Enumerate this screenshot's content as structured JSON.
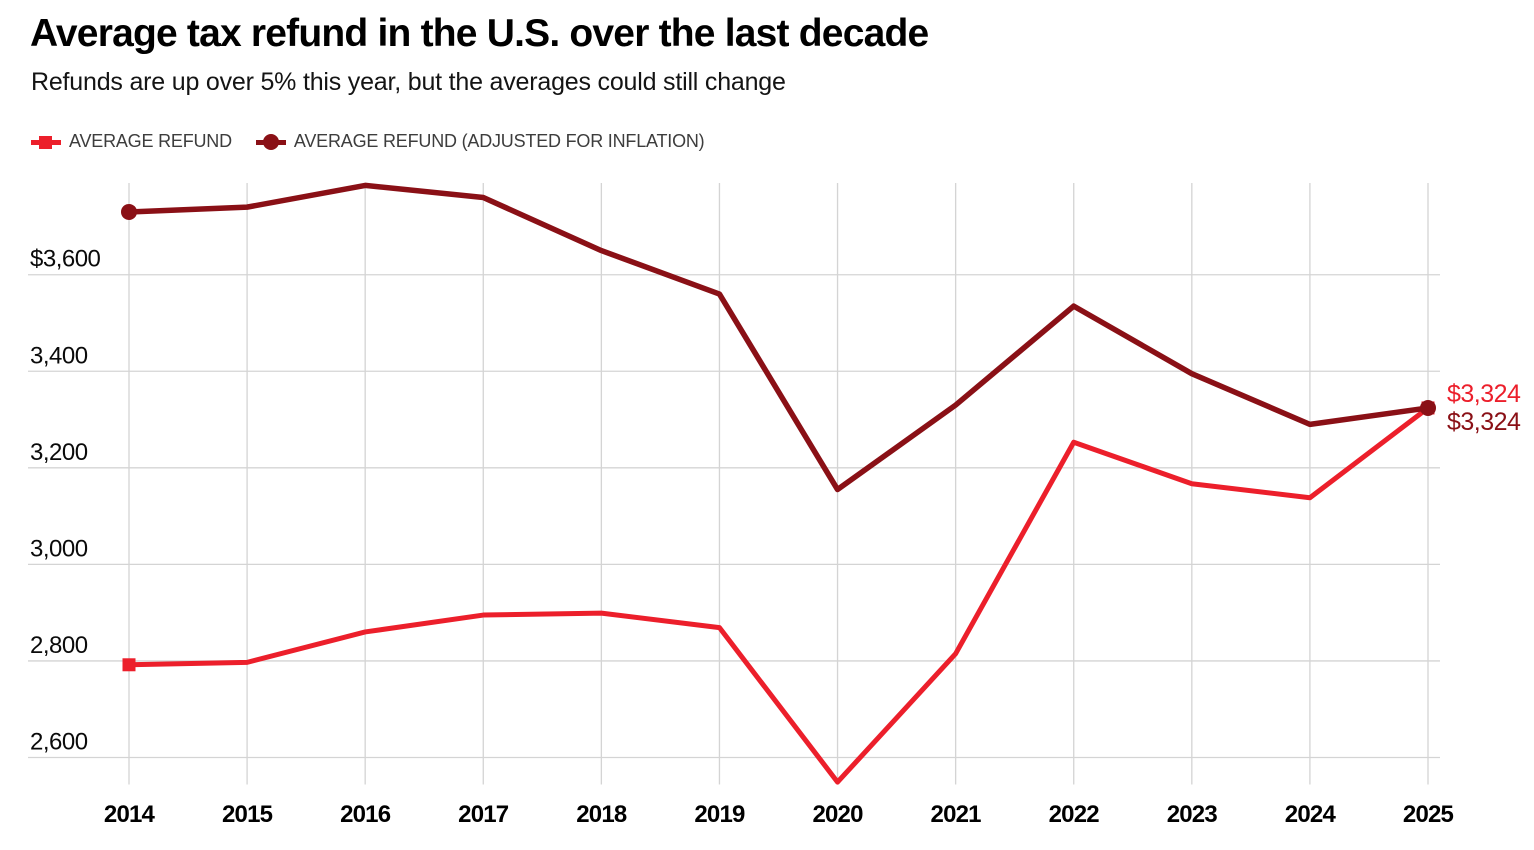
{
  "header": {
    "title": "Average tax refund in the U.S. over the last decade",
    "subtitle": "Refunds are up over 5% this year, but the averages could still change"
  },
  "colors": {
    "grid": "#d4d4d4",
    "axis_text": "#0a0a0a",
    "legend_text": "#3d3d3d",
    "series_red": "#ec1f2b",
    "series_dark_red": "#8a1016"
  },
  "chart_data": {
    "type": "line",
    "x": [
      2014,
      2015,
      2016,
      2017,
      2018,
      2019,
      2020,
      2021,
      2022,
      2023,
      2024,
      2025
    ],
    "x_tick_labels": [
      "2014",
      "2015",
      "2016",
      "2017",
      "2018",
      "2019",
      "2020",
      "2021",
      "2022",
      "2023",
      "2024",
      "2025"
    ],
    "series": [
      {
        "name": "AVERAGE REFUND",
        "color": "#ec1f2b",
        "marker": "square",
        "end_label": "$3,324",
        "values": [
          2792,
          2797,
          2860,
          2895,
          2899,
          2869,
          2549,
          2815,
          3253,
          3167,
          3138,
          3324
        ]
      },
      {
        "name": "AVERAGE REFUND (ADJUSTED FOR INFLATION)",
        "color": "#8a1016",
        "marker": "circle",
        "end_label": "$3,324",
        "values": [
          3730,
          3740,
          3785,
          3760,
          3650,
          3560,
          3155,
          3330,
          3535,
          3395,
          3290,
          3324
        ]
      }
    ],
    "y_ticks": [
      {
        "value": 3600,
        "label": "$3,600"
      },
      {
        "value": 3400,
        "label": "3,400"
      },
      {
        "value": 3200,
        "label": "3,200"
      },
      {
        "value": 3000,
        "label": "3,000"
      },
      {
        "value": 2800,
        "label": "2,800"
      },
      {
        "value": 2600,
        "label": "2,600"
      }
    ],
    "ylim": [
      2544,
      3790
    ],
    "grid": true,
    "legend_position": "top",
    "title": "Average tax refund in the U.S. over the last decade",
    "xlabel": "",
    "ylabel": ""
  }
}
